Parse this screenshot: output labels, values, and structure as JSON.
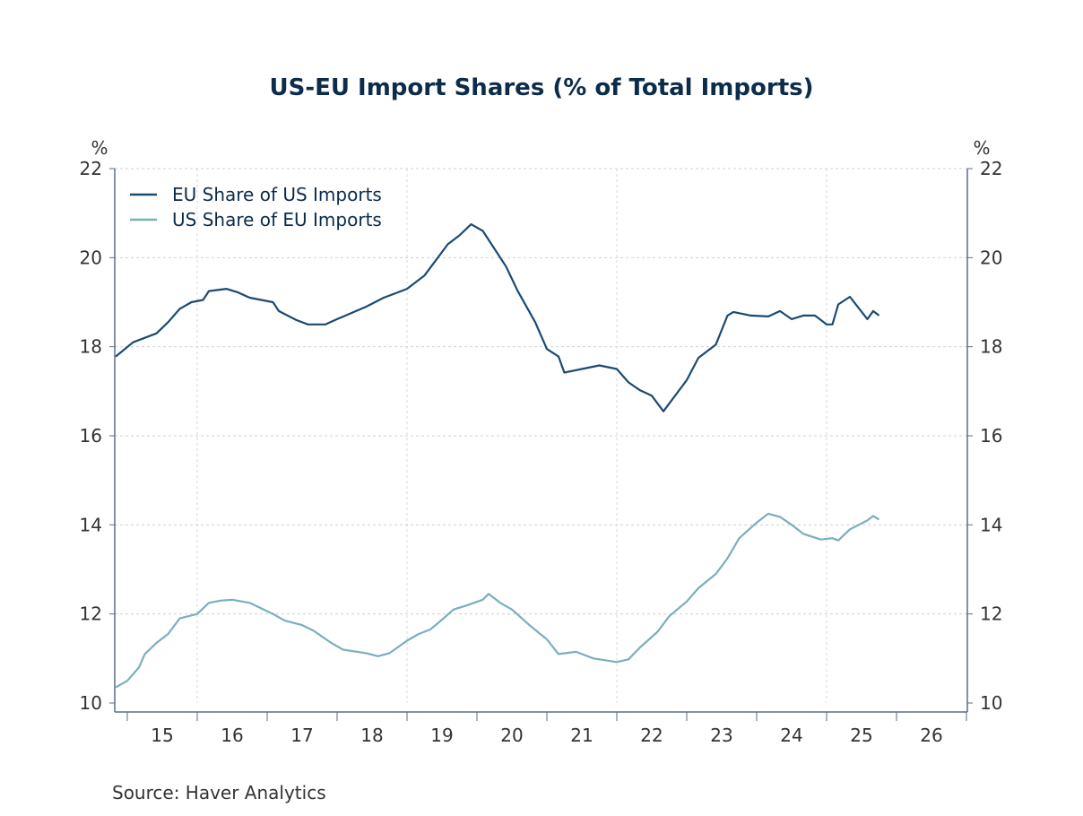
{
  "chart_data": {
    "type": "line",
    "title": "US-EU Import Shares (% of Total Imports)",
    "ylabel_left": "%",
    "ylabel_right": "%",
    "ylim": [
      10,
      22
    ],
    "yticks": [
      10,
      12,
      14,
      16,
      18,
      20,
      22
    ],
    "xlim": [
      "2014-11",
      "2026-12"
    ],
    "xtick_labels": [
      "15",
      "16",
      "17",
      "18",
      "19",
      "20",
      "21",
      "22",
      "23",
      "24",
      "25",
      "26"
    ],
    "grid": true,
    "legend_position": "top-left",
    "source": "Source:  Haver Analytics",
    "series": [
      {
        "name": "EU Share of US Imports",
        "color": "#1b4a72",
        "points": [
          [
            "2014-11",
            17.78
          ],
          [
            "2015-02",
            18.1
          ],
          [
            "2015-06",
            18.3
          ],
          [
            "2015-08",
            18.55
          ],
          [
            "2015-10",
            18.85
          ],
          [
            "2015-12",
            19.0
          ],
          [
            "2016-02",
            19.05
          ],
          [
            "2016-03",
            19.25
          ],
          [
            "2016-06",
            19.3
          ],
          [
            "2016-08",
            19.22
          ],
          [
            "2016-10",
            19.1
          ],
          [
            "2017-02",
            19.0
          ],
          [
            "2017-03",
            18.8
          ],
          [
            "2017-06",
            18.6
          ],
          [
            "2017-08",
            18.5
          ],
          [
            "2017-11",
            18.5
          ],
          [
            "2018-01",
            18.62
          ],
          [
            "2018-06",
            18.9
          ],
          [
            "2018-09",
            19.1
          ],
          [
            "2018-11",
            19.2
          ],
          [
            "2019-01",
            19.3
          ],
          [
            "2019-04",
            19.6
          ],
          [
            "2019-06",
            19.95
          ],
          [
            "2019-08",
            20.3
          ],
          [
            "2019-10",
            20.5
          ],
          [
            "2019-12",
            20.75
          ],
          [
            "2020-02",
            20.6
          ],
          [
            "2020-04",
            20.2
          ],
          [
            "2020-06",
            19.8
          ],
          [
            "2020-08",
            19.25
          ],
          [
            "2020-11",
            18.55
          ],
          [
            "2021-01",
            17.95
          ],
          [
            "2021-03",
            17.78
          ],
          [
            "2021-04",
            17.42
          ],
          [
            "2021-07",
            17.5
          ],
          [
            "2021-10",
            17.58
          ],
          [
            "2022-01",
            17.5
          ],
          [
            "2022-03",
            17.2
          ],
          [
            "2022-05",
            17.02
          ],
          [
            "2022-07",
            16.9
          ],
          [
            "2022-09",
            16.55
          ],
          [
            "2023-01",
            17.25
          ],
          [
            "2023-03",
            17.75
          ],
          [
            "2023-06",
            18.05
          ],
          [
            "2023-08",
            18.7
          ],
          [
            "2023-09",
            18.78
          ],
          [
            "2023-12",
            18.7
          ],
          [
            "2024-03",
            18.68
          ],
          [
            "2024-05",
            18.8
          ],
          [
            "2024-07",
            18.62
          ],
          [
            "2024-09",
            18.7
          ],
          [
            "2024-11",
            18.7
          ],
          [
            "2025-01",
            18.5
          ],
          [
            "2025-02",
            18.5
          ],
          [
            "2025-03",
            18.95
          ],
          [
            "2025-05",
            19.12
          ],
          [
            "2025-08",
            18.62
          ],
          [
            "2025-09",
            18.8
          ],
          [
            "2025-10",
            18.7
          ]
        ]
      },
      {
        "name": "US Share of EU Imports",
        "color": "#7aaebf",
        "points": [
          [
            "2014-11",
            10.35
          ],
          [
            "2015-01",
            10.5
          ],
          [
            "2015-03",
            10.8
          ],
          [
            "2015-04",
            11.1
          ],
          [
            "2015-06",
            11.35
          ],
          [
            "2015-08",
            11.55
          ],
          [
            "2015-10",
            11.9
          ],
          [
            "2016-01",
            12.0
          ],
          [
            "2016-03",
            12.25
          ],
          [
            "2016-05",
            12.3
          ],
          [
            "2016-07",
            12.32
          ],
          [
            "2016-10",
            12.25
          ],
          [
            "2017-02",
            12.0
          ],
          [
            "2017-04",
            11.85
          ],
          [
            "2017-07",
            11.75
          ],
          [
            "2017-09",
            11.62
          ],
          [
            "2017-12",
            11.35
          ],
          [
            "2018-02",
            11.2
          ],
          [
            "2018-06",
            11.12
          ],
          [
            "2018-08",
            11.05
          ],
          [
            "2018-10",
            11.12
          ],
          [
            "2019-01",
            11.4
          ],
          [
            "2019-03",
            11.55
          ],
          [
            "2019-05",
            11.65
          ],
          [
            "2019-07",
            11.87
          ],
          [
            "2019-09",
            12.1
          ],
          [
            "2019-11",
            12.18
          ],
          [
            "2020-02",
            12.32
          ],
          [
            "2020-03",
            12.45
          ],
          [
            "2020-05",
            12.25
          ],
          [
            "2020-07",
            12.1
          ],
          [
            "2020-10",
            11.75
          ],
          [
            "2021-01",
            11.43
          ],
          [
            "2021-03",
            11.1
          ],
          [
            "2021-06",
            11.15
          ],
          [
            "2021-09",
            11.0
          ],
          [
            "2022-01",
            10.92
          ],
          [
            "2022-03",
            10.98
          ],
          [
            "2022-05",
            11.25
          ],
          [
            "2022-08",
            11.6
          ],
          [
            "2022-10",
            11.95
          ],
          [
            "2023-01",
            12.28
          ],
          [
            "2023-03",
            12.58
          ],
          [
            "2023-06",
            12.9
          ],
          [
            "2023-08",
            13.25
          ],
          [
            "2023-10",
            13.7
          ],
          [
            "2024-01",
            14.05
          ],
          [
            "2024-03",
            14.25
          ],
          [
            "2024-05",
            14.18
          ],
          [
            "2024-07",
            14.0
          ],
          [
            "2024-09",
            13.8
          ],
          [
            "2024-12",
            13.67
          ],
          [
            "2025-02",
            13.7
          ],
          [
            "2025-03",
            13.65
          ],
          [
            "2025-05",
            13.9
          ],
          [
            "2025-08",
            14.1
          ],
          [
            "2025-09",
            14.2
          ],
          [
            "2025-10",
            14.12
          ]
        ]
      }
    ]
  }
}
